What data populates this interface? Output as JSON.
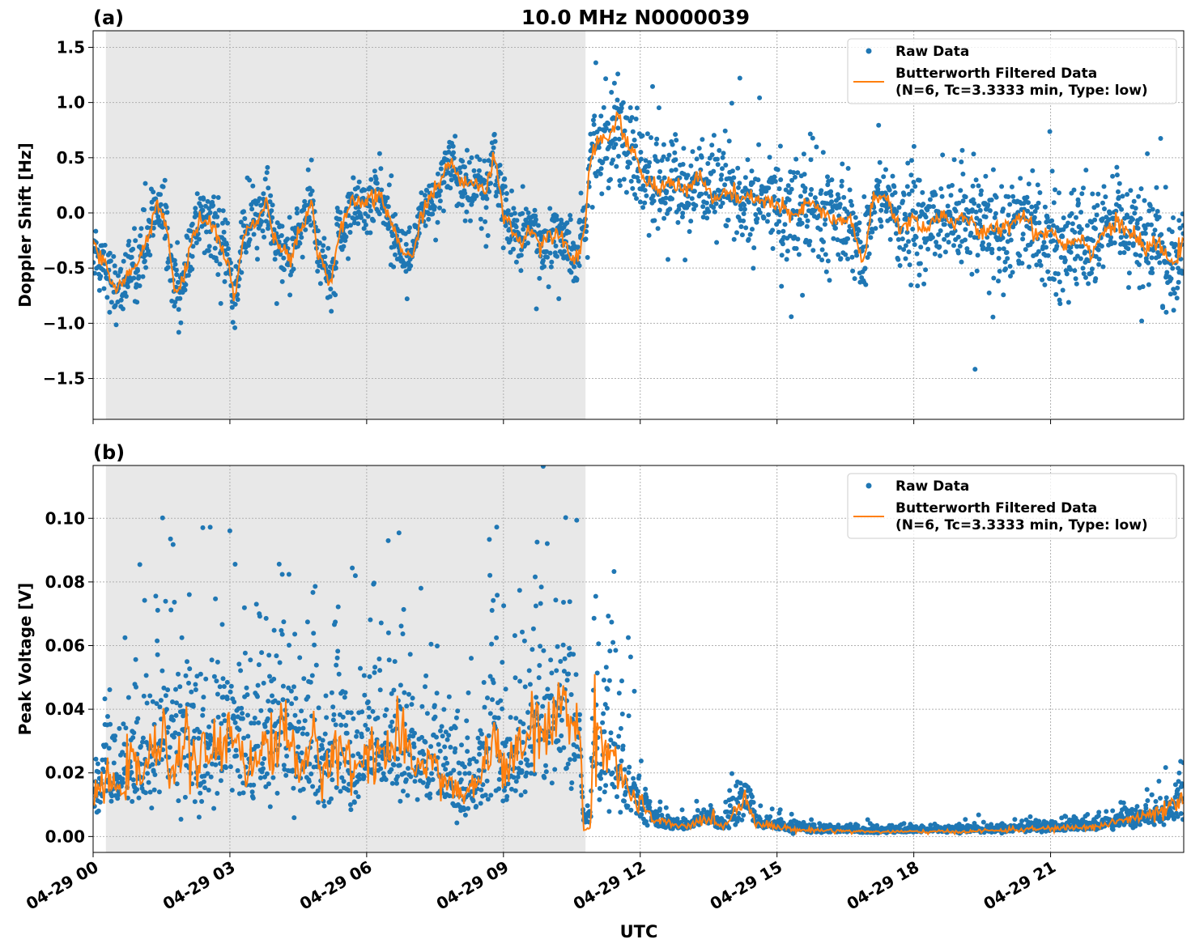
{
  "title": "10.0 MHz N0000039",
  "xlabel": "UTC",
  "x_tick_labels": [
    "04-29 00",
    "04-29 03",
    "04-29 06",
    "04-29 09",
    "04-29 12",
    "04-29 15",
    "04-29 18",
    "04-29 21"
  ],
  "x_tick_hours": [
    0,
    3,
    6,
    9,
    12,
    15,
    18,
    21
  ],
  "colors": {
    "raw": "#1f77b4",
    "filtered": "#ff7f0e",
    "shade": "#e8e8e8"
  },
  "legend": {
    "raw": "Raw Data",
    "filtered_line1": "Butterworth Filtered Data",
    "filtered_line2": "(N=6, Tc=3.3333 min, Type: low)",
    "placement": "upper right"
  },
  "chart_data": [
    {
      "panel_label": "(a)",
      "type": "scatter+line",
      "ylabel": "Doppler Shift [Hz]",
      "xlim_hours": [
        0,
        23.92
      ],
      "ylim": [
        -1.87,
        1.65
      ],
      "y_ticks": [
        -1.5,
        -1.0,
        -0.5,
        0.0,
        0.5,
        1.0,
        1.5
      ],
      "y_tick_labels": [
        "−1.5",
        "−1.0",
        "−0.5",
        "0.0",
        "0.5",
        "1.0",
        "1.5"
      ],
      "grid": true,
      "shaded_interval_hours": [
        0.28,
        10.8
      ],
      "filtered": {
        "x_hours": [
          0,
          0.3,
          0.5,
          0.8,
          1.0,
          1.2,
          1.4,
          1.6,
          1.8,
          2.0,
          2.2,
          2.4,
          2.6,
          2.8,
          3.0,
          3.1,
          3.3,
          3.6,
          3.8,
          4.0,
          4.3,
          4.6,
          4.8,
          4.9,
          5.2,
          5.4,
          5.7,
          6.0,
          6.3,
          6.6,
          6.8,
          7.0,
          7.2,
          7.4,
          7.6,
          7.8,
          8.0,
          8.2,
          8.4,
          8.6,
          8.8,
          9.0,
          9.2,
          9.4,
          9.6,
          9.8,
          10.0,
          10.2,
          10.4,
          10.6,
          10.8,
          10.9,
          11.1,
          11.3,
          11.5,
          11.7,
          11.9,
          12.1,
          12.4,
          12.7,
          13.0,
          13.3,
          13.6,
          13.9,
          14.2,
          14.5,
          14.8,
          15.1,
          15.4,
          15.7,
          16.0,
          16.3,
          16.6,
          16.9,
          17.1,
          17.4,
          17.7,
          18.0,
          18.3,
          18.6,
          18.9,
          19.2,
          19.5,
          19.8,
          20.1,
          20.4,
          20.7,
          21.0,
          21.3,
          21.6,
          21.9,
          22.2,
          22.5,
          22.8,
          23.1,
          23.3,
          23.6,
          23.92
        ],
        "y": [
          -0.3,
          -0.5,
          -0.7,
          -0.55,
          -0.45,
          -0.2,
          0.1,
          -0.1,
          -0.75,
          -0.6,
          -0.15,
          -0.05,
          -0.1,
          -0.3,
          -0.5,
          -0.85,
          -0.15,
          -0.1,
          0.1,
          -0.25,
          -0.4,
          -0.1,
          0.1,
          -0.3,
          -0.65,
          -0.2,
          0.1,
          0.1,
          0.15,
          -0.15,
          -0.35,
          -0.45,
          0.0,
          0.15,
          0.25,
          0.5,
          0.3,
          0.25,
          0.3,
          0.15,
          0.55,
          0.0,
          -0.15,
          -0.3,
          -0.1,
          -0.3,
          -0.2,
          -0.15,
          -0.3,
          -0.45,
          -0.1,
          0.5,
          0.7,
          0.65,
          0.9,
          0.6,
          0.5,
          0.3,
          0.2,
          0.3,
          0.2,
          0.35,
          0.1,
          0.2,
          0.1,
          0.15,
          0.1,
          0.05,
          -0.05,
          0.1,
          0.0,
          -0.1,
          -0.05,
          -0.45,
          0.1,
          0.15,
          -0.15,
          -0.05,
          -0.15,
          0.0,
          -0.1,
          -0.05,
          -0.2,
          -0.15,
          -0.1,
          0.0,
          -0.2,
          -0.15,
          -0.3,
          -0.2,
          -0.35,
          -0.15,
          -0.1,
          -0.2,
          -0.35,
          -0.25,
          -0.45,
          -0.3
        ]
      }
    },
    {
      "panel_label": "(b)",
      "type": "scatter+line",
      "ylabel": "Peak Voltage [V]",
      "xlim_hours": [
        0,
        23.92
      ],
      "ylim": [
        -0.005,
        0.1166
      ],
      "y_ticks": [
        0,
        0.02,
        0.04,
        0.06,
        0.08,
        0.1
      ],
      "y_tick_labels": [
        "0.00",
        "0.02",
        "0.04",
        "0.06",
        "0.08",
        "0.10"
      ],
      "grid": true,
      "shaded_interval_hours": [
        0.28,
        10.8
      ],
      "filtered": {
        "x_hours": [
          0,
          0.3,
          0.5,
          0.8,
          1.0,
          1.3,
          1.5,
          1.7,
          2.0,
          2.3,
          2.6,
          2.8,
          3.0,
          3.2,
          3.5,
          3.8,
          4.0,
          4.2,
          4.5,
          4.8,
          5.0,
          5.3,
          5.5,
          5.8,
          6.1,
          6.4,
          6.7,
          7.0,
          7.3,
          7.6,
          7.9,
          8.2,
          8.5,
          8.8,
          9.1,
          9.4,
          9.7,
          10.0,
          10.3,
          10.5,
          10.7,
          10.75,
          10.9,
          11.0,
          11.2,
          11.4,
          11.7,
          12.0,
          12.3,
          12.6,
          13.0,
          13.5,
          13.8,
          14.3,
          14.6,
          15.0,
          15.5,
          16,
          17,
          18,
          19,
          20,
          21,
          22,
          22.5,
          23,
          23.5,
          23.92
        ],
        "y": [
          0.012,
          0.018,
          0.014,
          0.022,
          0.02,
          0.025,
          0.03,
          0.022,
          0.03,
          0.022,
          0.028,
          0.025,
          0.035,
          0.03,
          0.02,
          0.03,
          0.028,
          0.035,
          0.022,
          0.03,
          0.018,
          0.03,
          0.025,
          0.02,
          0.03,
          0.025,
          0.03,
          0.022,
          0.025,
          0.02,
          0.015,
          0.012,
          0.02,
          0.03,
          0.02,
          0.028,
          0.035,
          0.03,
          0.045,
          0.04,
          0.025,
          0.002,
          0.003,
          0.035,
          0.03,
          0.025,
          0.015,
          0.01,
          0.005,
          0.004,
          0.003,
          0.006,
          0.003,
          0.012,
          0.004,
          0.003,
          0.002,
          0.002,
          0.0015,
          0.0015,
          0.0015,
          0.002,
          0.0025,
          0.003,
          0.005,
          0.006,
          0.008,
          0.011
        ]
      }
    }
  ]
}
